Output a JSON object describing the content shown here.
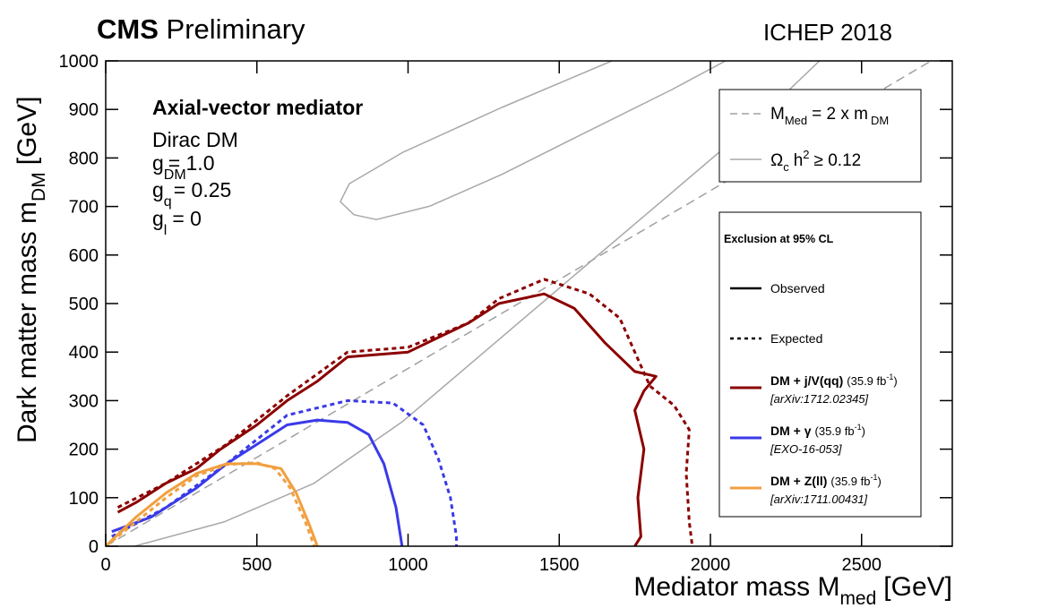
{
  "chart_data": {
    "type": "line",
    "title": [
      "CMS",
      "Preliminary"
    ],
    "conference": "ICHEP 2018",
    "x_label": [
      "Mediator mass M",
      "med",
      "[GeV]"
    ],
    "y_label": [
      "Dark matter mass m",
      "DM",
      "[GeV]"
    ],
    "annotations": {
      "mediator": "Axial-vector mediator",
      "dm": "Dirac DM",
      "g_dm": [
        "g",
        "DM",
        "= 1.0"
      ],
      "g_q": [
        "g",
        "q",
        "= 0.25"
      ],
      "g_l": [
        "g",
        "l",
        "= 0"
      ]
    },
    "xlim": [
      0,
      2800
    ],
    "ylim": [
      0,
      1000
    ],
    "xticks": [
      0,
      500,
      1000,
      1500,
      2000,
      2500
    ],
    "yticks": [
      0,
      100,
      200,
      300,
      400,
      500,
      600,
      700,
      800,
      900,
      1000
    ],
    "references": [
      {
        "name": [
          "M",
          "Med",
          "= 2 x m",
          "DM"
        ],
        "color": "#a0a0a0",
        "style": "dashed",
        "x": [
          0,
          2730
        ],
        "values": [
          0,
          1000
        ]
      },
      {
        "name": [
          "Ω",
          "c",
          "h",
          "2",
          "≥ 0.12"
        ],
        "color": "#a8a8a8",
        "style": "solid",
        "x": [
          1674,
          1310,
          984,
          806,
          776,
          821,
          895,
          1073,
          1310,
          1576,
          1873,
          2050,
          2100,
          95,
          391,
          687,
          984,
          1280,
          1576,
          1873,
          2169,
          2361
        ],
        "values": [
          1000,
          904,
          812,
          747,
          710,
          683,
          673,
          701,
          766,
          849,
          941,
          1000,
          null,
          0,
          50,
          129,
          258,
          415,
          572,
          729,
          886,
          1000
        ]
      }
    ],
    "legend": {
      "title": "Exclusion at 95% CL",
      "observed": "Observed",
      "expected": "Expected"
    },
    "series": [
      {
        "name": "DM + j/V(qq)",
        "lumi": [
          "(35.9 fb",
          "-1",
          ")"
        ],
        "reference": "[arXiv:1712.02345]",
        "color": "#8b0000",
        "style": "solid",
        "x": [
          40,
          100,
          200,
          300,
          380,
          500,
          600,
          700,
          800,
          1000,
          1100,
          1200,
          1300,
          1450,
          1550,
          1650,
          1750,
          1820,
          1780,
          1750,
          1780,
          1760,
          1770,
          1750
        ],
        "values": [
          70,
          90,
          130,
          160,
          200,
          250,
          300,
          340,
          390,
          400,
          430,
          460,
          500,
          520,
          490,
          420,
          360,
          350,
          320,
          280,
          200,
          100,
          20,
          0
        ]
      },
      {
        "color": "#8b0000",
        "style": "dashed",
        "x": [
          40,
          200,
          400,
          600,
          800,
          1000,
          1200,
          1300,
          1450,
          1600,
          1700,
          1750,
          1800,
          1880,
          1930,
          1920,
          1930,
          1940
        ],
        "values": [
          80,
          130,
          210,
          310,
          400,
          410,
          460,
          510,
          550,
          520,
          470,
          400,
          330,
          290,
          240,
          150,
          50,
          0
        ]
      },
      {
        "name": "DM + γ",
        "lumi": [
          "(35.9 fb",
          "-1",
          ")"
        ],
        "reference": "[EXO-16-053]",
        "color": "#3a3ae8",
        "style": "solid",
        "x": [
          20,
          150,
          300,
          400,
          500,
          600,
          700,
          800,
          870,
          920,
          960,
          980
        ],
        "values": [
          30,
          60,
          120,
          170,
          210,
          250,
          260,
          255,
          230,
          170,
          80,
          0
        ]
      },
      {
        "color": "#3a3ae8",
        "style": "dashed",
        "x": [
          20,
          200,
          400,
          600,
          800,
          950,
          1050,
          1100,
          1140,
          1160,
          1160
        ],
        "values": [
          20,
          80,
          170,
          270,
          300,
          295,
          250,
          180,
          100,
          20,
          0
        ]
      },
      {
        "name": "DM + Z(ll)",
        "lumi": [
          "(35.9 fb",
          "-1",
          ")"
        ],
        "reference": "[arXiv:1711.00431]",
        "color": "#f0a040",
        "style": "solid",
        "x": [
          0,
          100,
          200,
          300,
          400,
          500,
          580,
          630,
          670,
          700
        ],
        "values": [
          0,
          60,
          110,
          150,
          170,
          170,
          160,
          110,
          50,
          0
        ]
      },
      {
        "color": "#f0a040",
        "style": "dashed",
        "x": [
          0,
          100,
          200,
          300,
          400,
          500,
          560,
          610,
          660,
          690
        ],
        "values": [
          0,
          50,
          100,
          145,
          168,
          172,
          160,
          120,
          50,
          0
        ]
      }
    ]
  }
}
